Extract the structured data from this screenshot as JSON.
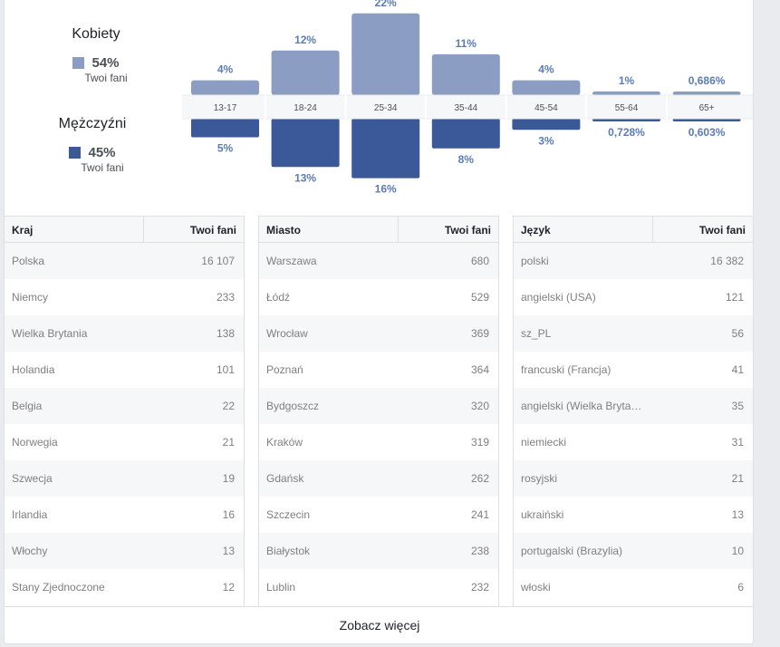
{
  "legend": {
    "women": {
      "label": "Kobiety",
      "percent": "54%",
      "sub": "Twoi fani"
    },
    "men": {
      "label": "Mężczyźni",
      "percent": "45%",
      "sub": "Twoi fani"
    }
  },
  "colors": {
    "women": "#8b9dc3",
    "men": "#3b5998",
    "label_text": "#5b7bb5"
  },
  "chart_data": {
    "type": "bar",
    "categories": [
      "13-17",
      "18-24",
      "25-34",
      "35-44",
      "45-54",
      "55-64",
      "65+"
    ],
    "series": [
      {
        "name": "Kobiety",
        "values": [
          4,
          12,
          22,
          11,
          4,
          1,
          0.686
        ],
        "labels": [
          "4%",
          "12%",
          "22%",
          "11%",
          "4%",
          "1%",
          "0,686%"
        ]
      },
      {
        "name": "Mężczyźni",
        "values": [
          5,
          13,
          16,
          8,
          3,
          0.728,
          0.603
        ],
        "labels": [
          "5%",
          "13%",
          "16%",
          "8%",
          "3%",
          "0,728%",
          "0,603%"
        ]
      }
    ]
  },
  "tables": {
    "country": {
      "header": "Kraj",
      "value_header": "Twoi fani",
      "rows": [
        [
          "Polska",
          "16 107"
        ],
        [
          "Niemcy",
          "233"
        ],
        [
          "Wielka Brytania",
          "138"
        ],
        [
          "Holandia",
          "101"
        ],
        [
          "Belgia",
          "22"
        ],
        [
          "Norwegia",
          "21"
        ],
        [
          "Szwecja",
          "19"
        ],
        [
          "Irlandia",
          "16"
        ],
        [
          "Włochy",
          "13"
        ],
        [
          "Stany Zjednoczone",
          "12"
        ]
      ]
    },
    "city": {
      "header": "Miasto",
      "value_header": "Twoi fani",
      "rows": [
        [
          "Warszawa",
          "680"
        ],
        [
          "Łódź",
          "529"
        ],
        [
          "Wrocław",
          "369"
        ],
        [
          "Poznań",
          "364"
        ],
        [
          "Bydgoszcz",
          "320"
        ],
        [
          "Kraków",
          "319"
        ],
        [
          "Gdańsk",
          "262"
        ],
        [
          "Szczecin",
          "241"
        ],
        [
          "Białystok",
          "238"
        ],
        [
          "Lublin",
          "232"
        ]
      ]
    },
    "language": {
      "header": "Język",
      "value_header": "Twoi fani",
      "rows": [
        [
          "polski",
          "16 382"
        ],
        [
          "angielski (USA)",
          "121"
        ],
        [
          "sz_PL",
          "56"
        ],
        [
          "francuski (Francja)",
          "41"
        ],
        [
          "angielski (Wielka Bryta…",
          "35"
        ],
        [
          "niemiecki",
          "31"
        ],
        [
          "rosyjski",
          "21"
        ],
        [
          "ukraiński",
          "13"
        ],
        [
          "portugalski (Brazylia)",
          "10"
        ],
        [
          "włoski",
          "6"
        ]
      ]
    }
  },
  "footer": {
    "see_more": "Zobacz więcej"
  }
}
